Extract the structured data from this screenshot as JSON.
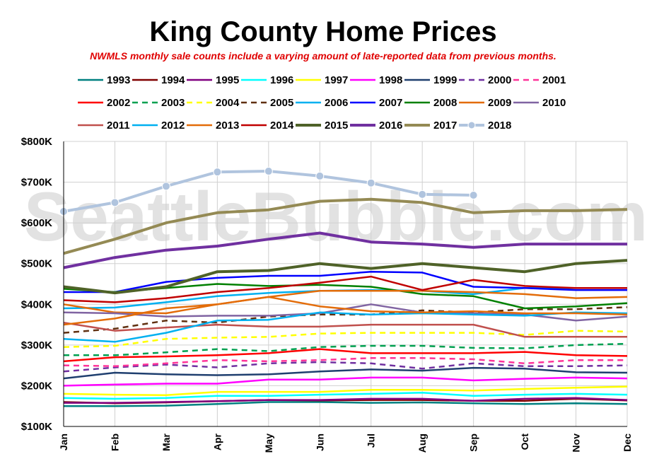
{
  "chart_data": {
    "type": "line",
    "title": "King County Home Prices",
    "subtitle": "NWMLS monthly sale counts include a varying amount of late-reported  data from previous months.",
    "watermark": "SeattleBubble.com",
    "xlabel": "",
    "ylabel": "",
    "ylim": [
      100000,
      800000
    ],
    "yticks": [
      100000,
      200000,
      300000,
      400000,
      500000,
      600000,
      700000,
      800000
    ],
    "ytick_labels": [
      "$100K",
      "$200K",
      "$300K",
      "$400K",
      "$500K",
      "$600K",
      "$700K",
      "$800K"
    ],
    "categories": [
      "Jan",
      "Feb",
      "Mar",
      "Apr",
      "May",
      "Jun",
      "Jul",
      "Aug",
      "Sep",
      "Oct",
      "Nov",
      "Dec"
    ],
    "grid": "horizontal and vertical",
    "legend_position": "top",
    "series": [
      {
        "name": "1993",
        "color": "#008080",
        "dash": "solid",
        "values": [
          150000,
          150000,
          151000,
          155000,
          160000,
          160000,
          158000,
          159000,
          157000,
          155000,
          157000,
          155000
        ]
      },
      {
        "name": "1994",
        "color": "#800000",
        "dash": "solid",
        "values": [
          160000,
          157000,
          159000,
          162000,
          165000,
          164000,
          165000,
          165000,
          163000,
          163000,
          168000,
          164000
        ]
      },
      {
        "name": "1995",
        "color": "#800080",
        "dash": "solid",
        "values": [
          158000,
          158000,
          160000,
          162000,
          165000,
          165000,
          168000,
          168000,
          163000,
          168000,
          170000,
          165000
        ]
      },
      {
        "name": "1996",
        "color": "#00ffff",
        "dash": "solid",
        "values": [
          170000,
          168000,
          170000,
          175000,
          175000,
          178000,
          180000,
          183000,
          175000,
          178000,
          180000,
          178000
        ]
      },
      {
        "name": "1997",
        "color": "#ffff00",
        "dash": "solid",
        "values": [
          180000,
          178000,
          177000,
          185000,
          185000,
          185000,
          190000,
          190000,
          188000,
          192000,
          195000,
          198000
        ]
      },
      {
        "name": "1998",
        "color": "#ff00ff",
        "dash": "solid",
        "values": [
          200000,
          203000,
          205000,
          205000,
          215000,
          215000,
          220000,
          220000,
          213000,
          217000,
          220000,
          218000
        ]
      },
      {
        "name": "1999",
        "color": "#1f3f6f",
        "dash": "solid",
        "values": [
          218000,
          232000,
          228000,
          226000,
          228000,
          235000,
          240000,
          237000,
          244000,
          242000,
          233000,
          232000
        ]
      },
      {
        "name": "2000",
        "color": "#7030a0",
        "dash": "dash",
        "values": [
          235000,
          245000,
          252000,
          245000,
          255000,
          258000,
          255000,
          242000,
          255000,
          248000,
          248000,
          250000
        ]
      },
      {
        "name": "2001",
        "color": "#ff3399",
        "dash": "dash",
        "values": [
          250000,
          248000,
          255000,
          263000,
          260000,
          263000,
          268000,
          268000,
          265000,
          255000,
          263000,
          263000
        ]
      },
      {
        "name": "2002",
        "color": "#ff0000",
        "dash": "solid",
        "values": [
          260000,
          270000,
          272000,
          275000,
          280000,
          290000,
          280000,
          280000,
          280000,
          283000,
          275000,
          273000
        ]
      },
      {
        "name": "2003",
        "color": "#00a050",
        "dash": "dash",
        "values": [
          275000,
          275000,
          282000,
          290000,
          285000,
          295000,
          298000,
          298000,
          293000,
          292000,
          300000,
          303000
        ]
      },
      {
        "name": "2004",
        "color": "#ffff00",
        "dash": "dash",
        "values": [
          295000,
          298000,
          315000,
          318000,
          320000,
          328000,
          330000,
          330000,
          330000,
          325000,
          335000,
          333000
        ]
      },
      {
        "name": "2005",
        "color": "#603010",
        "dash": "dash",
        "values": [
          330000,
          340000,
          360000,
          355000,
          370000,
          375000,
          375000,
          385000,
          380000,
          388000,
          388000,
          393000
        ]
      },
      {
        "name": "2006",
        "color": "#00b0f0",
        "dash": "solid",
        "values": [
          390000,
          392000,
          405000,
          420000,
          428000,
          433000,
          435000,
          433000,
          425000,
          440000,
          440000,
          440000
        ]
      },
      {
        "name": "2007",
        "color": "#0000ff",
        "dash": "solid",
        "values": [
          430000,
          430000,
          455000,
          465000,
          470000,
          470000,
          480000,
          478000,
          443000,
          440000,
          435000,
          435000
        ]
      },
      {
        "name": "2008",
        "color": "#008000",
        "dash": "solid",
        "values": [
          438000,
          430000,
          440000,
          450000,
          445000,
          448000,
          443000,
          425000,
          420000,
          390000,
          395000,
          403000
        ]
      },
      {
        "name": "2009",
        "color": "#e36c09",
        "dash": "solid",
        "values": [
          400000,
          380000,
          378000,
          400000,
          418000,
          433000,
          433000,
          433000,
          430000,
          425000,
          415000,
          418000
        ]
      },
      {
        "name": "2010",
        "color": "#8064a2",
        "dash": "solid",
        "values": [
          380000,
          378000,
          370000,
          372000,
          372000,
          378000,
          400000,
          380000,
          378000,
          375000,
          360000,
          370000
        ]
      },
      {
        "name": "2011",
        "color": "#c0504d",
        "dash": "solid",
        "values": [
          355000,
          335000,
          343000,
          350000,
          345000,
          345000,
          350000,
          350000,
          350000,
          320000,
          320000,
          320000
        ]
      },
      {
        "name": "2012",
        "color": "#00b0f0",
        "dash": "solid",
        "values": [
          315000,
          308000,
          330000,
          360000,
          362000,
          380000,
          375000,
          378000,
          375000,
          372000,
          380000,
          378000
        ]
      },
      {
        "name": "2013",
        "color": "#e36c09",
        "dash": "solid",
        "values": [
          350000,
          365000,
          390000,
          400000,
          418000,
          395000,
          383000,
          380000,
          383000,
          378000,
          378000,
          375000
        ]
      },
      {
        "name": "2014",
        "color": "#c00000",
        "dash": "solid",
        "values": [
          410000,
          405000,
          415000,
          430000,
          440000,
          453000,
          468000,
          435000,
          460000,
          445000,
          440000,
          440000
        ]
      },
      {
        "name": "2015",
        "color": "#4f6228",
        "dash": "solid",
        "values": [
          443000,
          428000,
          443000,
          480000,
          483000,
          500000,
          488000,
          500000,
          490000,
          480000,
          500000,
          508000
        ]
      },
      {
        "name": "2016",
        "color": "#7030a0",
        "dash": "solid",
        "values": [
          490000,
          515000,
          533000,
          543000,
          560000,
          575000,
          553000,
          548000,
          540000,
          548000,
          548000,
          548000
        ]
      },
      {
        "name": "2017",
        "color": "#948a54",
        "dash": "solid",
        "values": [
          525000,
          560000,
          600000,
          625000,
          632000,
          653000,
          658000,
          650000,
          625000,
          630000,
          630000,
          633000
        ]
      },
      {
        "name": "2018",
        "color": "#b0c4de",
        "dash": "solid",
        "marker": true,
        "values": [
          628000,
          650000,
          690000,
          725000,
          727000,
          715000,
          698000,
          670000,
          668000,
          null,
          null,
          null
        ]
      }
    ]
  }
}
